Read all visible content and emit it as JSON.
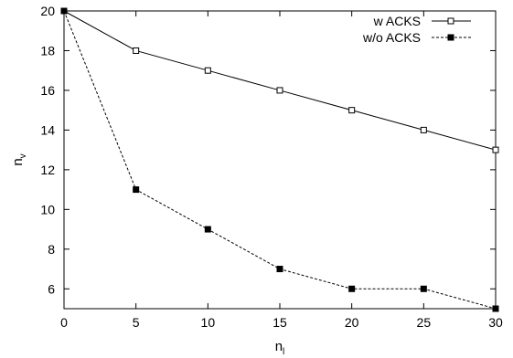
{
  "chart_data": {
    "type": "line",
    "title": "",
    "xlabel": {
      "base": "n",
      "sub": "l"
    },
    "ylabel": {
      "base": "n",
      "sub": "v"
    },
    "xlim": [
      0,
      30
    ],
    "ylim": [
      5,
      20
    ],
    "xticks": [
      0,
      5,
      10,
      15,
      20,
      25,
      30
    ],
    "yticks": [
      6,
      8,
      10,
      12,
      14,
      16,
      18,
      20
    ],
    "grid": false,
    "legend_position": "top-right",
    "x": [
      0,
      5,
      10,
      15,
      20,
      25,
      30
    ],
    "series": [
      {
        "name": "w ACKS",
        "values": [
          20,
          18,
          17,
          16,
          15,
          14,
          13
        ],
        "line_style": "solid",
        "marker": "open-square",
        "color": "#000000"
      },
      {
        "name": "w/o ACKS",
        "values": [
          20,
          11,
          9,
          7,
          6,
          6,
          5
        ],
        "line_style": "dashed",
        "marker": "filled-square",
        "color": "#000000"
      }
    ]
  }
}
